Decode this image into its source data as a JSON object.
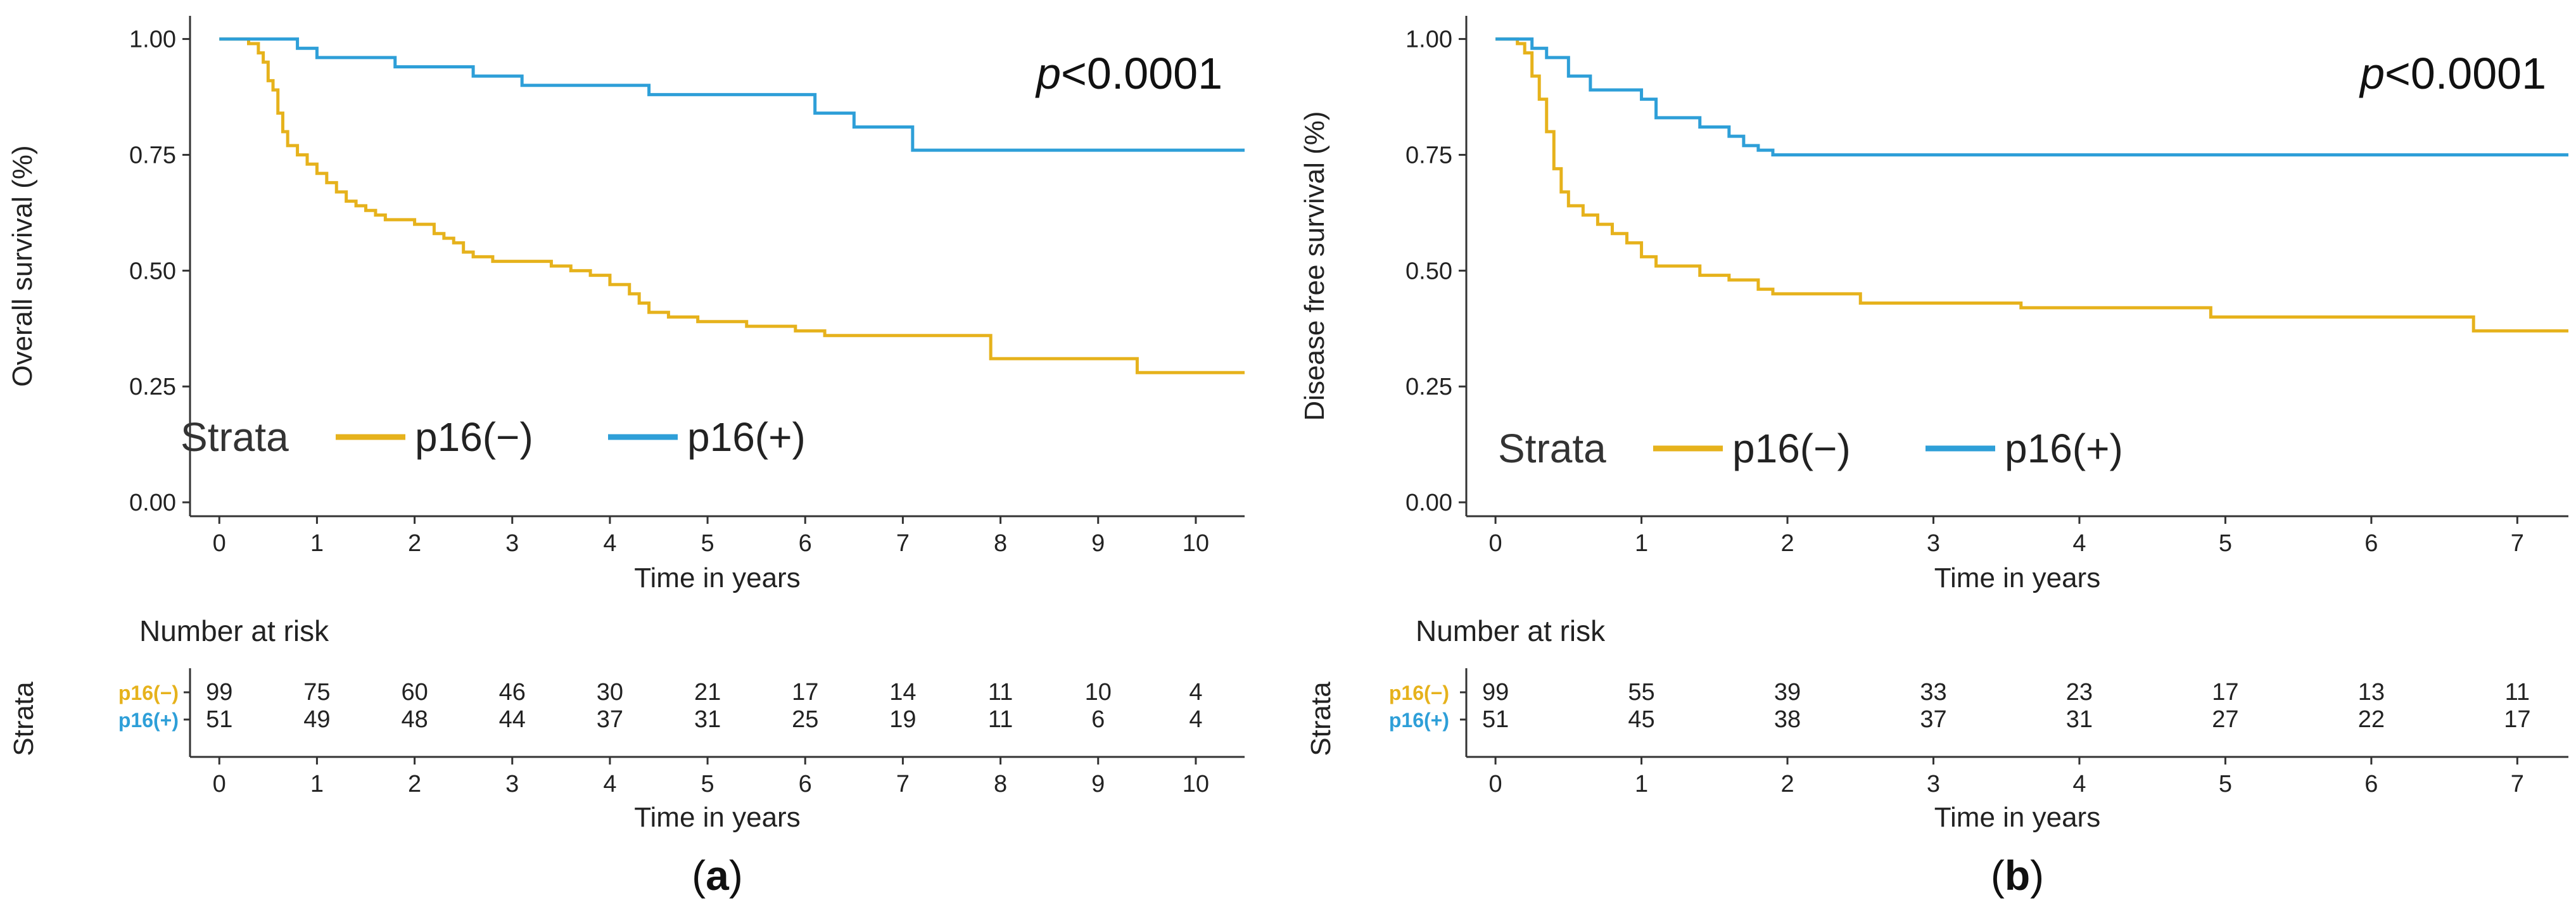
{
  "chart_data": [
    {
      "type": "line",
      "id": "a",
      "panel_label_prefix": "(",
      "panel_label": "a",
      "panel_label_suffix": ")",
      "ylabel": "Overall survival (%)",
      "xlabel": "Time in years",
      "xlim": [
        -0.3,
        10.5
      ],
      "ylim": [
        -0.03,
        1.05
      ],
      "xticks": [
        0,
        1,
        2,
        3,
        4,
        5,
        6,
        7,
        8,
        9,
        10
      ],
      "xtick_labels": [
        "0",
        "1",
        "2",
        "3",
        "4",
        "5",
        "6",
        "7",
        "8",
        "9",
        "10"
      ],
      "yticks": [
        0,
        0.25,
        0.5,
        0.75,
        1
      ],
      "ytick_labels": [
        "0.00",
        "0.25",
        "0.50",
        "0.75",
        "1.00"
      ],
      "pvalue_prefix": "p",
      "pvalue_text": "<0.0001",
      "legend": {
        "title": "Strata",
        "placement": "bottom-left"
      },
      "series": [
        {
          "name": "p16(−)",
          "color": "#E6B21C",
          "x": [
            0,
            0.3,
            0.4,
            0.45,
            0.5,
            0.55,
            0.6,
            0.65,
            0.7,
            0.8,
            0.9,
            1.0,
            1.1,
            1.2,
            1.3,
            1.4,
            1.5,
            1.6,
            1.7,
            1.8,
            2.0,
            2.2,
            2.3,
            2.4,
            2.5,
            2.6,
            2.8,
            3.0,
            3.4,
            3.6,
            3.8,
            4.0,
            4.2,
            4.3,
            4.4,
            4.6,
            4.9,
            5.4,
            5.9,
            6.2,
            7.9,
            9.4,
            10.5
          ],
          "y": [
            1.0,
            0.99,
            0.97,
            0.95,
            0.91,
            0.89,
            0.84,
            0.8,
            0.77,
            0.75,
            0.73,
            0.71,
            0.69,
            0.67,
            0.65,
            0.64,
            0.63,
            0.62,
            0.61,
            0.61,
            0.6,
            0.58,
            0.57,
            0.56,
            0.54,
            0.53,
            0.52,
            0.52,
            0.51,
            0.5,
            0.49,
            0.47,
            0.45,
            0.43,
            0.41,
            0.4,
            0.39,
            0.38,
            0.37,
            0.36,
            0.31,
            0.28,
            0.28
          ]
        },
        {
          "name": "p16(+)",
          "color": "#2E9FD8",
          "x": [
            0,
            0.8,
            1.0,
            1.8,
            2.6,
            3.1,
            4.4,
            6.1,
            6.5,
            7.1,
            10.5
          ],
          "y": [
            1.0,
            0.98,
            0.96,
            0.94,
            0.92,
            0.9,
            0.88,
            0.84,
            0.81,
            0.76,
            0.76
          ]
        }
      ],
      "risk_table": {
        "title": "Number at risk",
        "ylabel": "Strata",
        "xlabel": "Time in years",
        "times": [
          "0",
          "1",
          "2",
          "3",
          "4",
          "5",
          "6",
          "7",
          "8",
          "9",
          "10"
        ],
        "rows": [
          {
            "label": "p16(−)",
            "color": "#E6B21C",
            "counts": [
              "99",
              "75",
              "60",
              "46",
              "30",
              "21",
              "17",
              "14",
              "11",
              "10",
              "4"
            ]
          },
          {
            "label": "p16(+)",
            "color": "#2E9FD8",
            "counts": [
              "51",
              "49",
              "48",
              "44",
              "37",
              "31",
              "25",
              "19",
              "11",
              "6",
              "4"
            ]
          }
        ]
      }
    },
    {
      "type": "line",
      "id": "b",
      "panel_label_prefix": "(",
      "panel_label": "b",
      "panel_label_suffix": ")",
      "ylabel": "Disease free survival (%)",
      "xlabel": "Time in years",
      "xlim": [
        -0.2,
        7.35
      ],
      "ylim": [
        -0.03,
        1.05
      ],
      "xticks": [
        0,
        1,
        2,
        3,
        4,
        5,
        6,
        7
      ],
      "xtick_labels": [
        "0",
        "1",
        "2",
        "3",
        "4",
        "5",
        "6",
        "7"
      ],
      "yticks": [
        0,
        0.25,
        0.5,
        0.75,
        1
      ],
      "ytick_labels": [
        "0.00",
        "0.25",
        "0.50",
        "0.75",
        "1.00"
      ],
      "pvalue_prefix": "p",
      "pvalue_text": "<0.0001",
      "legend": {
        "title": "Strata",
        "placement": "bottom-left"
      },
      "series": [
        {
          "name": "p16(−)",
          "color": "#E6B21C",
          "x": [
            0,
            0.15,
            0.2,
            0.25,
            0.3,
            0.35,
            0.4,
            0.45,
            0.5,
            0.6,
            0.7,
            0.8,
            0.9,
            1.0,
            1.1,
            1.2,
            1.4,
            1.6,
            1.8,
            1.9,
            2.5,
            3.6,
            4.9,
            6.7,
            7.35
          ],
          "y": [
            1.0,
            0.99,
            0.97,
            0.92,
            0.87,
            0.8,
            0.72,
            0.67,
            0.64,
            0.62,
            0.6,
            0.58,
            0.56,
            0.53,
            0.51,
            0.51,
            0.49,
            0.48,
            0.46,
            0.45,
            0.43,
            0.42,
            0.4,
            0.37,
            0.37
          ]
        },
        {
          "name": "p16(+)",
          "color": "#2E9FD8",
          "x": [
            0,
            0.25,
            0.35,
            0.5,
            0.65,
            1.0,
            1.1,
            1.4,
            1.6,
            1.7,
            1.8,
            1.9,
            7.35
          ],
          "y": [
            1.0,
            0.98,
            0.96,
            0.92,
            0.89,
            0.87,
            0.83,
            0.81,
            0.79,
            0.77,
            0.76,
            0.75,
            0.75
          ]
        }
      ],
      "risk_table": {
        "title": "Number at risk",
        "ylabel": "Strata",
        "xlabel": "Time in years",
        "times": [
          "0",
          "1",
          "2",
          "3",
          "4",
          "5",
          "6",
          "7"
        ],
        "rows": [
          {
            "label": "p16(−)",
            "color": "#E6B21C",
            "counts": [
              "99",
              "55",
              "39",
              "33",
              "23",
              "17",
              "13",
              "11"
            ]
          },
          {
            "label": "p16(+)",
            "color": "#2E9FD8",
            "counts": [
              "51",
              "45",
              "38",
              "37",
              "31",
              "27",
              "22",
              "17"
            ]
          }
        ]
      }
    }
  ]
}
